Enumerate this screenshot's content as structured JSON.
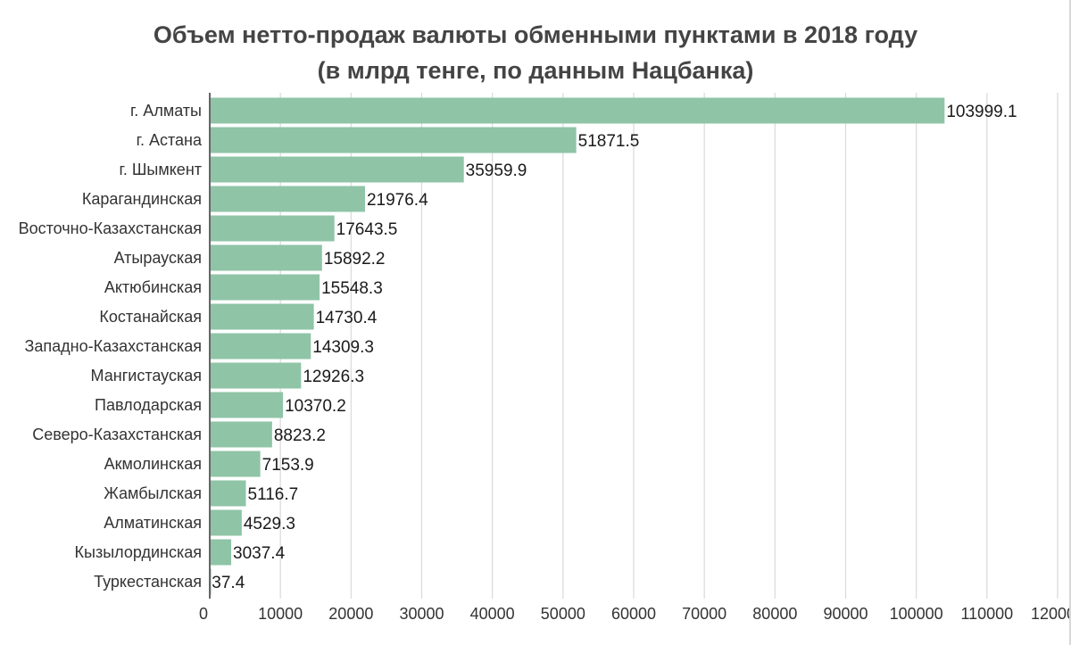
{
  "chart_data": {
    "type": "bar",
    "orientation": "horizontal",
    "title": "Объем нетто-продаж валюты обменными пунктами в 2018 году",
    "subtitle": "(в млрд тенге, по данным Нацбанка)",
    "xlabel": "",
    "ylabel": "",
    "xlim": [
      0,
      120000
    ],
    "x_ticks": [
      0,
      10000,
      20000,
      30000,
      40000,
      50000,
      60000,
      70000,
      80000,
      90000,
      100000,
      110000,
      120000
    ],
    "grid": true,
    "legend": "none",
    "bar_color": "#8fc4a7",
    "categories": [
      "г. Алматы",
      "г. Астана",
      "г. Шымкент",
      "Карагандинская",
      "Восточно-Казахстанская",
      "Атырауская",
      "Актюбинская",
      "Костанайская",
      "Западно-Казахстанская",
      "Мангистауская",
      "Павлодарская",
      "Северо-Казахстанская",
      "Акмолинская",
      "Жамбылская",
      "Алматинская",
      "Кызылординская",
      "Туркестанская"
    ],
    "values": [
      103999.1,
      51871.5,
      35959.9,
      21976.4,
      17643.5,
      15892.2,
      15548.3,
      14730.4,
      14309.3,
      12926.3,
      10370.2,
      8823.2,
      7153.9,
      5116.7,
      4529.3,
      3037.4,
      37.4
    ],
    "value_labels": [
      "103999.1",
      "51871.5",
      "35959.9",
      "21976.4",
      "17643.5",
      "15892.2",
      "15548.3",
      "14730.4",
      "14309.3",
      "12926.3",
      "10370.2",
      "8823.2",
      "7153.9",
      "5116.7",
      "4529.3",
      "3037.4",
      "37.4"
    ]
  }
}
